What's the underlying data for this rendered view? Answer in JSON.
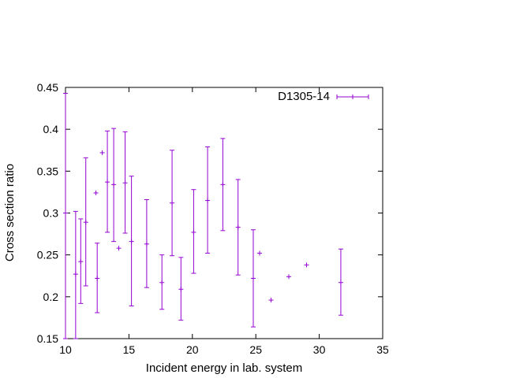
{
  "chart_data": {
    "type": "scatter",
    "title": "",
    "xlabel": "Incident energy in lab. system",
    "ylabel": "Cross section ratio",
    "xlim": [
      10,
      35
    ],
    "ylim": [
      0.15,
      0.45
    ],
    "xticks": [
      10,
      15,
      20,
      25,
      30,
      35
    ],
    "yticks": [
      0.15,
      0.2,
      0.25,
      0.3,
      0.35,
      0.4,
      0.45
    ],
    "grid": false,
    "legend_position": "top-right",
    "series": [
      {
        "name": "D1305-14",
        "color": "#9400d3",
        "marker": "plus-with-y-error-bars",
        "points": [
          {
            "x": 10.0,
            "y": 0.3,
            "ylo": 0.15,
            "yhi": 0.443
          },
          {
            "x": 10.8,
            "y": 0.227,
            "ylo": 0.15,
            "yhi": 0.302
          },
          {
            "x": 11.2,
            "y": 0.242,
            "ylo": 0.192,
            "yhi": 0.293
          },
          {
            "x": 11.6,
            "y": 0.289,
            "ylo": 0.213,
            "yhi": 0.366
          },
          {
            "x": 12.4,
            "y": 0.324,
            "ylo": 0.324,
            "yhi": 0.324
          },
          {
            "x": 12.5,
            "y": 0.222,
            "ylo": 0.181,
            "yhi": 0.264
          },
          {
            "x": 12.9,
            "y": 0.372,
            "ylo": 0.372,
            "yhi": 0.372
          },
          {
            "x": 13.3,
            "y": 0.337,
            "ylo": 0.277,
            "yhi": 0.398
          },
          {
            "x": 13.8,
            "y": 0.334,
            "ylo": 0.266,
            "yhi": 0.401
          },
          {
            "x": 14.2,
            "y": 0.258,
            "ylo": 0.258,
            "yhi": 0.258
          },
          {
            "x": 14.7,
            "y": 0.336,
            "ylo": 0.276,
            "yhi": 0.397
          },
          {
            "x": 15.2,
            "y": 0.266,
            "ylo": 0.189,
            "yhi": 0.344
          },
          {
            "x": 16.4,
            "y": 0.263,
            "ylo": 0.211,
            "yhi": 0.316
          },
          {
            "x": 17.6,
            "y": 0.217,
            "ylo": 0.185,
            "yhi": 0.25
          },
          {
            "x": 18.4,
            "y": 0.312,
            "ylo": 0.249,
            "yhi": 0.375
          },
          {
            "x": 19.1,
            "y": 0.209,
            "ylo": 0.172,
            "yhi": 0.247
          },
          {
            "x": 20.1,
            "y": 0.277,
            "ylo": 0.228,
            "yhi": 0.328
          },
          {
            "x": 21.2,
            "y": 0.315,
            "ylo": 0.252,
            "yhi": 0.379
          },
          {
            "x": 22.4,
            "y": 0.334,
            "ylo": 0.279,
            "yhi": 0.389
          },
          {
            "x": 23.6,
            "y": 0.283,
            "ylo": 0.226,
            "yhi": 0.34
          },
          {
            "x": 24.8,
            "y": 0.222,
            "ylo": 0.164,
            "yhi": 0.28
          },
          {
            "x": 25.3,
            "y": 0.252,
            "ylo": 0.252,
            "yhi": 0.252
          },
          {
            "x": 26.2,
            "y": 0.196,
            "ylo": 0.196,
            "yhi": 0.196
          },
          {
            "x": 27.6,
            "y": 0.224,
            "ylo": 0.224,
            "yhi": 0.224
          },
          {
            "x": 29.0,
            "y": 0.238,
            "ylo": 0.238,
            "yhi": 0.238
          },
          {
            "x": 31.7,
            "y": 0.217,
            "ylo": 0.178,
            "yhi": 0.257
          }
        ]
      }
    ]
  }
}
